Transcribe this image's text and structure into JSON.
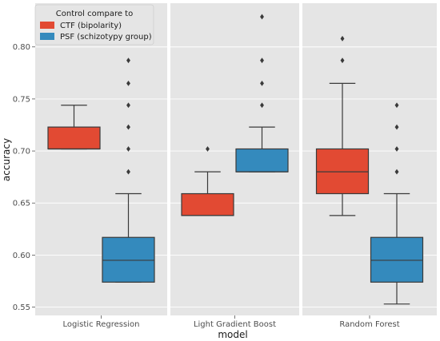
{
  "chart_data": {
    "type": "boxplot",
    "xlabel": "model",
    "ylabel": "accuracy",
    "ylim": [
      0.542,
      0.842
    ],
    "yticks": [
      "0.55",
      "0.60",
      "0.65",
      "0.70",
      "0.75",
      "0.80"
    ],
    "ytick_values": [
      0.55,
      0.6,
      0.65,
      0.7,
      0.75,
      0.8
    ],
    "categories": [
      "Logistic Regression",
      "Light Gradient Boost",
      "Random Forest"
    ],
    "grid": true,
    "legend": {
      "title": "Control compare to",
      "placement": "top-left"
    },
    "series": [
      {
        "name": "CTF (bipolarity)",
        "color": "#e24a33",
        "boxes": [
          {
            "whislo": 0.702,
            "q1": 0.702,
            "med": 0.702,
            "q3": 0.723,
            "whishi": 0.744,
            "fliers": []
          },
          {
            "whislo": 0.638,
            "q1": 0.638,
            "med": 0.638,
            "q3": 0.659,
            "whishi": 0.68,
            "fliers": [
              0.702
            ]
          },
          {
            "whislo": 0.638,
            "q1": 0.659,
            "med": 0.68,
            "q3": 0.702,
            "whishi": 0.765,
            "fliers": [
              0.787,
              0.808
            ]
          }
        ]
      },
      {
        "name": "PSF (schizotypy group)",
        "color": "#348abd",
        "boxes": [
          {
            "whislo": 0.574,
            "q1": 0.574,
            "med": 0.595,
            "q3": 0.617,
            "whishi": 0.659,
            "fliers": [
              0.68,
              0.702,
              0.723,
              0.744,
              0.765,
              0.787
            ]
          },
          {
            "whislo": 0.68,
            "q1": 0.68,
            "med": 0.68,
            "q3": 0.702,
            "whishi": 0.723,
            "fliers": [
              0.744,
              0.765,
              0.787,
              0.829
            ]
          },
          {
            "whislo": 0.553,
            "q1": 0.574,
            "med": 0.595,
            "q3": 0.617,
            "whishi": 0.659,
            "fliers": [
              0.68,
              0.702,
              0.723,
              0.744
            ]
          }
        ]
      }
    ]
  }
}
